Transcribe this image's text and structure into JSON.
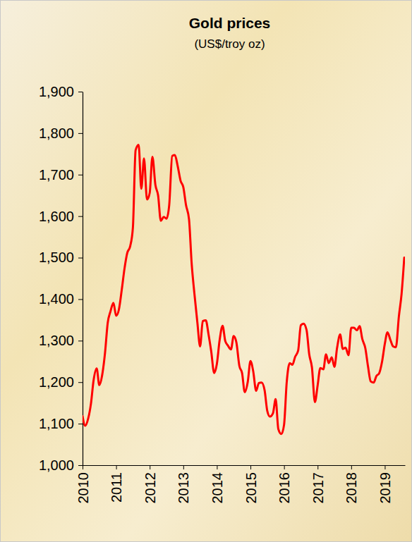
{
  "chart_data": {
    "type": "line",
    "title": "Gold prices",
    "subtitle": "(US$/troy oz)",
    "x": [
      2010,
      2010.08,
      2010.17,
      2010.25,
      2010.33,
      2010.42,
      2010.5,
      2010.58,
      2010.67,
      2010.75,
      2010.83,
      2010.92,
      2011,
      2011.08,
      2011.17,
      2011.25,
      2011.33,
      2011.42,
      2011.5,
      2011.58,
      2011.67,
      2011.75,
      2011.83,
      2011.92,
      2012,
      2012.08,
      2012.17,
      2012.25,
      2012.33,
      2012.42,
      2012.5,
      2012.58,
      2012.67,
      2012.75,
      2012.83,
      2012.92,
      2013,
      2013.08,
      2013.17,
      2013.25,
      2013.33,
      2013.42,
      2013.5,
      2013.58,
      2013.67,
      2013.75,
      2013.83,
      2013.92,
      2014,
      2014.08,
      2014.17,
      2014.25,
      2014.33,
      2014.42,
      2014.5,
      2014.58,
      2014.67,
      2014.75,
      2014.83,
      2014.92,
      2015,
      2015.08,
      2015.17,
      2015.25,
      2015.33,
      2015.42,
      2015.5,
      2015.58,
      2015.67,
      2015.75,
      2015.83,
      2015.92,
      2016,
      2016.08,
      2016.17,
      2016.25,
      2016.33,
      2016.42,
      2016.5,
      2016.58,
      2016.67,
      2016.75,
      2016.83,
      2016.92,
      2017,
      2017.08,
      2017.17,
      2017.25,
      2017.33,
      2017.42,
      2017.5,
      2017.58,
      2017.67,
      2017.75,
      2017.83,
      2017.92,
      2018,
      2018.08,
      2018.17,
      2018.25,
      2018.33,
      2018.42,
      2018.5,
      2018.58,
      2018.67,
      2018.75,
      2018.83,
      2018.92,
      2019,
      2019.08,
      2019.17,
      2019.25,
      2019.33,
      2019.42,
      2019.5,
      2019.58
    ],
    "values": [
      1118,
      1095,
      1113,
      1148,
      1205,
      1233,
      1193,
      1215,
      1271,
      1343,
      1370,
      1391,
      1360,
      1374,
      1424,
      1474,
      1511,
      1528,
      1573,
      1759,
      1772,
      1666,
      1739,
      1640,
      1656,
      1743,
      1675,
      1650,
      1589,
      1598,
      1594,
      1626,
      1745,
      1747,
      1722,
      1685,
      1670,
      1627,
      1593,
      1485,
      1414,
      1343,
      1286,
      1347,
      1349,
      1316,
      1275,
      1222,
      1244,
      1300,
      1336,
      1299,
      1288,
      1279,
      1311,
      1296,
      1239,
      1222,
      1176,
      1201,
      1251,
      1227,
      1179,
      1198,
      1199,
      1181,
      1131,
      1117,
      1125,
      1159,
      1087,
      1075,
      1097,
      1200,
      1246,
      1242,
      1261,
      1276,
      1337,
      1341,
      1326,
      1267,
      1236,
      1152,
      1192,
      1234,
      1231,
      1267,
      1246,
      1260,
      1237,
      1283,
      1315,
      1280,
      1283,
      1265,
      1331,
      1331,
      1325,
      1335,
      1304,
      1282,
      1238,
      1202,
      1199,
      1215,
      1221,
      1250,
      1292,
      1320,
      1301,
      1286,
      1284,
      1359,
      1413,
      1500
    ],
    "color": "#ff0000",
    "xlim": [
      2010,
      2019.6
    ],
    "xticks": [
      2010,
      2011,
      2012,
      2013,
      2014,
      2015,
      2016,
      2017,
      2018,
      2019
    ],
    "ylim": [
      1000,
      1900
    ],
    "yticks": [
      {
        "value": 1000,
        "label": "1,000"
      },
      {
        "value": 1100,
        "label": "1,100"
      },
      {
        "value": 1200,
        "label": "1,200"
      },
      {
        "value": 1300,
        "label": "1,300"
      },
      {
        "value": 1400,
        "label": "1,400"
      },
      {
        "value": 1500,
        "label": "1,500"
      },
      {
        "value": 1600,
        "label": "1,600"
      },
      {
        "value": 1700,
        "label": "1,700"
      },
      {
        "value": 1800,
        "label": "1,800"
      },
      {
        "value": 1900,
        "label": "1,900"
      }
    ],
    "grid": false
  }
}
